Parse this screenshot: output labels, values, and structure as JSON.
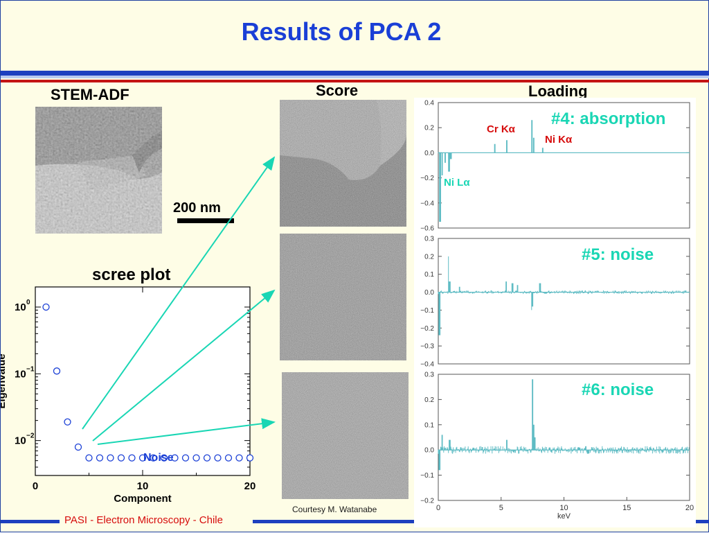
{
  "title": "Results of PCA 2",
  "headers": {
    "stem": "STEM-ADF",
    "score": "Score",
    "loading": "Loading",
    "scree": "scree plot"
  },
  "scale_bar": "200 nm",
  "scree": {
    "ylabel": "Eigenvalue",
    "xlabel": "Component",
    "noise_label": "Noise",
    "yticks": [
      "10",
      "10",
      "10"
    ],
    "ytick_exponents": [
      "0",
      "−1",
      "−2"
    ],
    "xticks": [
      "0",
      "10",
      "20"
    ]
  },
  "loadings": {
    "panel1": {
      "label": "#4: absorption",
      "yticks": [
        "0.4",
        "0.2",
        "0.0",
        "−0.2",
        "−0.4",
        "−0.6"
      ],
      "annot_cr": "Cr Kα",
      "annot_ni_k": "Ni Kα",
      "annot_ni_l": "Ni Lα"
    },
    "panel2": {
      "label": "#5: noise",
      "yticks": [
        "0.3",
        "0.2",
        "0.1",
        "0.0",
        "−0.1",
        "−0.2",
        "−0.3",
        "−0.4"
      ]
    },
    "panel3": {
      "label": "#6: noise",
      "yticks": [
        "0.3",
        "0.2",
        "0.1",
        "0.0",
        "−0.1",
        "−0.2"
      ],
      "xticks": [
        "0",
        "5",
        "10",
        "15",
        "20"
      ],
      "xlabel": "keV"
    }
  },
  "courtesy": "Courtesy M. Watanabe",
  "footer": "PASI - Electron Microscopy - Chile",
  "colors": {
    "title": "#1a3fd6",
    "accent_teal": "#19d6b4",
    "accent_red": "#d60b0b",
    "noise_blue": "#1a3fd6",
    "spectrum": "#5fbcc4"
  },
  "chart_data": {
    "type": "scatter",
    "title": "scree plot",
    "xlabel": "Component",
    "ylabel": "Eigenvalue",
    "yscale": "log",
    "xlim": [
      0,
      20
    ],
    "ylim": [
      0.003,
      2
    ],
    "x": [
      1,
      2,
      3,
      4,
      5,
      6,
      7,
      8,
      9,
      10,
      11,
      12,
      13,
      14,
      15,
      16,
      17,
      18,
      19,
      20
    ],
    "y": [
      1.0,
      0.11,
      0.019,
      0.008,
      0.0055,
      0.0055,
      0.0055,
      0.0055,
      0.0055,
      0.0055,
      0.0055,
      0.0055,
      0.0055,
      0.0055,
      0.0055,
      0.0055,
      0.0055,
      0.0055,
      0.0055,
      0.0055
    ]
  }
}
